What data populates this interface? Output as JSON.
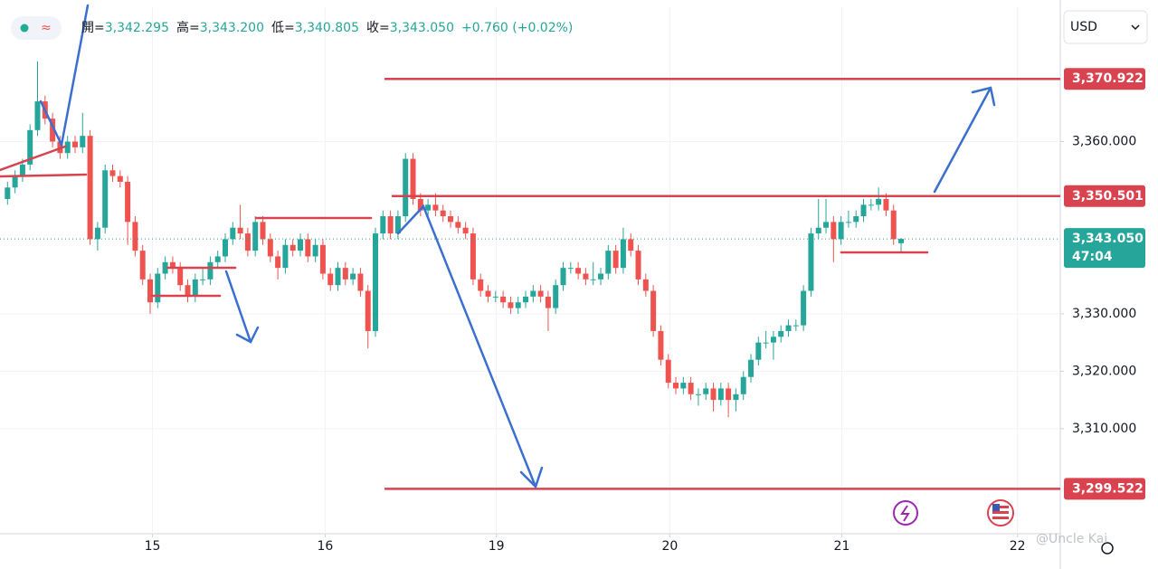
{
  "chart_data": {
    "type": "candlestick",
    "currency": "USD",
    "ohlc_legend": [
      {
        "name": "開=",
        "value": "3,342.295"
      },
      {
        "name": "高=",
        "value": "3,343.200"
      },
      {
        "name": "低=",
        "value": "3,340.805"
      },
      {
        "name": "收=",
        "value": "3,343.050"
      }
    ],
    "change": "+0.760 (+0.02%)",
    "up_color": "#26a69a",
    "down_color": "#ef5350",
    "ylim": [
      3291.7,
      3383.4
    ],
    "yticks": [
      {
        "value": 3310,
        "label": "3,310.000"
      },
      {
        "value": 3320,
        "label": "3,320.000"
      },
      {
        "value": 3330,
        "label": "3,330.000"
      },
      {
        "value": 3360,
        "label": "3,360.000"
      }
    ],
    "xlim": [
      -1,
      140.2
    ],
    "xticks": [
      {
        "value": 19.3,
        "label": "15"
      },
      {
        "value": 42.3,
        "label": "16"
      },
      {
        "value": 65.1,
        "label": "19"
      },
      {
        "value": 88.2,
        "label": "20"
      },
      {
        "value": 111.1,
        "label": "21"
      },
      {
        "value": 134.5,
        "label": "22"
      }
    ],
    "grid": true,
    "price_lines": [
      {
        "value": 3370.922,
        "label": "3,370.922",
        "color": "#d9424f"
      },
      {
        "value": 3350.501,
        "label": "3,350.501",
        "color": "#d9424f"
      },
      {
        "value": 3299.522,
        "label": "3,299.522",
        "color": "#d9424f"
      }
    ],
    "last_price": {
      "value": 3343.05,
      "label": "3,343.050",
      "countdown": "47:04",
      "color": "#26a69a"
    },
    "watermark": "@Uncle Kai",
    "candles": [
      [
        3350,
        3353,
        3349,
        3352
      ],
      [
        3352,
        3355,
        3351,
        3354
      ],
      [
        3354,
        3357,
        3353,
        3356
      ],
      [
        3356,
        3363,
        3355,
        3362
      ],
      [
        3362,
        3374,
        3361,
        3367
      ],
      [
        3367,
        3368,
        3363,
        3364
      ],
      [
        3364,
        3365,
        3359,
        3360
      ],
      [
        3360,
        3361,
        3357,
        3358
      ],
      [
        3358,
        3361,
        3357,
        3360
      ],
      [
        3360,
        3361,
        3358,
        3359
      ],
      [
        3359,
        3365,
        3358,
        3361
      ],
      [
        3361,
        3362,
        3342,
        3343
      ],
      [
        3343,
        3346,
        3341,
        3345
      ],
      [
        3345,
        3356,
        3344,
        3355
      ],
      [
        3355,
        3356,
        3353,
        3354
      ],
      [
        3354,
        3355,
        3352,
        3353
      ],
      [
        3353,
        3354,
        3342,
        3346
      ],
      [
        3346,
        3347,
        3340,
        3341
      ],
      [
        3341,
        3342,
        3335,
        3336
      ],
      [
        3336,
        3337,
        3330,
        3332
      ],
      [
        3332,
        3338,
        3331,
        3337
      ],
      [
        3337,
        3340,
        3336,
        3339
      ],
      [
        3339,
        3340,
        3337,
        3338
      ],
      [
        3338,
        3339,
        3334,
        3335
      ],
      [
        3335,
        3336,
        3332,
        3333
      ],
      [
        3333,
        3337,
        3332,
        3336
      ],
      [
        3336,
        3338,
        3335,
        3336
      ],
      [
        3336,
        3340,
        3335,
        3339
      ],
      [
        3339,
        3341,
        3338,
        3340
      ],
      [
        3340,
        3344,
        3339,
        3343
      ],
      [
        3343,
        3346,
        3342,
        3345
      ],
      [
        3345,
        3349,
        3343,
        3344
      ],
      [
        3344,
        3345,
        3340,
        3341
      ],
      [
        3341,
        3347,
        3340,
        3346
      ],
      [
        3346,
        3347,
        3342,
        3343
      ],
      [
        3343,
        3344,
        3339,
        3340
      ],
      [
        3340,
        3341,
        3336,
        3338
      ],
      [
        3338,
        3343,
        3337,
        3342
      ],
      [
        3342,
        3343,
        3340,
        3341
      ],
      [
        3341,
        3344,
        3340,
        3343
      ],
      [
        3343,
        3344,
        3339,
        3340
      ],
      [
        3340,
        3343,
        3339,
        3342
      ],
      [
        3342,
        3343,
        3336,
        3337
      ],
      [
        3337,
        3338,
        3334,
        3335
      ],
      [
        3335,
        3339,
        3334,
        3338
      ],
      [
        3338,
        3339,
        3335,
        3336
      ],
      [
        3336,
        3338,
        3335,
        3337
      ],
      [
        3337,
        3338,
        3333,
        3334
      ],
      [
        3334,
        3335,
        3324,
        3327
      ],
      [
        3327,
        3345,
        3326,
        3344
      ],
      [
        3344,
        3348,
        3343,
        3347
      ],
      [
        3347,
        3348,
        3343,
        3344
      ],
      [
        3344,
        3348,
        3343,
        3347
      ],
      [
        3347,
        3358,
        3346,
        3357
      ],
      [
        3357,
        3358,
        3349,
        3350
      ],
      [
        3350,
        3351,
        3347,
        3348
      ],
      [
        3348,
        3350,
        3347,
        3349
      ],
      [
        3349,
        3351,
        3347,
        3348
      ],
      [
        3348,
        3349,
        3346,
        3347
      ],
      [
        3347,
        3348,
        3345,
        3346
      ],
      [
        3346,
        3347,
        3344,
        3345
      ],
      [
        3345,
        3346,
        3343,
        3344
      ],
      [
        3344,
        3345,
        3335,
        3336
      ],
      [
        3336,
        3337,
        3333,
        3334
      ],
      [
        3334,
        3335,
        3332,
        3333
      ],
      [
        3333,
        3334,
        3332,
        3333
      ],
      [
        3333,
        3334,
        3331,
        3332
      ],
      [
        3332,
        3333,
        3330,
        3331
      ],
      [
        3331,
        3333,
        3330,
        3332
      ],
      [
        3332,
        3334,
        3331,
        3333
      ],
      [
        3333,
        3335,
        3332,
        3334
      ],
      [
        3334,
        3335,
        3332,
        3333
      ],
      [
        3333,
        3334,
        3327,
        3331
      ],
      [
        3331,
        3336,
        3330,
        3335
      ],
      [
        3335,
        3339,
        3334,
        3338
      ],
      [
        3338,
        3339,
        3337,
        3338
      ],
      [
        3338,
        3339,
        3336,
        3337
      ],
      [
        3337,
        3338,
        3335,
        3336
      ],
      [
        3336,
        3339,
        3335,
        3336
      ],
      [
        3336,
        3338,
        3335,
        3337
      ],
      [
        3337,
        3342,
        3336,
        3341
      ],
      [
        3341,
        3342,
        3337,
        3338
      ],
      [
        3338,
        3345,
        3337,
        3343
      ],
      [
        3343,
        3344,
        3340,
        3341
      ],
      [
        3341,
        3342,
        3335,
        3336
      ],
      [
        3336,
        3337,
        3333,
        3334
      ],
      [
        3334,
        3335,
        3326,
        3327
      ],
      [
        3327,
        3328,
        3321,
        3322
      ],
      [
        3322,
        3323,
        3317,
        3318
      ],
      [
        3318,
        3319,
        3316,
        3317
      ],
      [
        3317,
        3319,
        3316,
        3318
      ],
      [
        3318,
        3319,
        3315,
        3316
      ],
      [
        3316,
        3317,
        3314,
        3316
      ],
      [
        3316,
        3318,
        3315,
        3317
      ],
      [
        3317,
        3318,
        3313,
        3315
      ],
      [
        3315,
        3318,
        3314,
        3317
      ],
      [
        3317,
        3318,
        3312,
        3315
      ],
      [
        3315,
        3317,
        3313,
        3316
      ],
      [
        3316,
        3320,
        3315,
        3319
      ],
      [
        3319,
        3323,
        3318,
        3322
      ],
      [
        3322,
        3326,
        3321,
        3325
      ],
      [
        3325,
        3327,
        3324,
        3325
      ],
      [
        3325,
        3327,
        3322,
        3326
      ],
      [
        3326,
        3328,
        3325,
        3327
      ],
      [
        3327,
        3329,
        3326,
        3328
      ],
      [
        3328,
        3329,
        3327,
        3328
      ],
      [
        3328,
        3335,
        3327,
        3334
      ],
      [
        3334,
        3345,
        3333,
        3344
      ],
      [
        3344,
        3350,
        3343,
        3345
      ],
      [
        3345,
        3350,
        3344,
        3346
      ],
      [
        3346,
        3347,
        3339,
        3343
      ],
      [
        3343,
        3347,
        3342,
        3346
      ],
      [
        3346,
        3348,
        3345,
        3346
      ],
      [
        3346,
        3348,
        3345,
        3347
      ],
      [
        3347,
        3350,
        3346,
        3349
      ],
      [
        3349,
        3350,
        3348,
        3349
      ],
      [
        3349,
        3352,
        3348,
        3350
      ],
      [
        3350,
        3351,
        3347,
        3348
      ],
      [
        3348,
        3349,
        3342,
        3343
      ],
      [
        3342.295,
        3343.2,
        3340.805,
        3343.05
      ]
    ]
  }
}
